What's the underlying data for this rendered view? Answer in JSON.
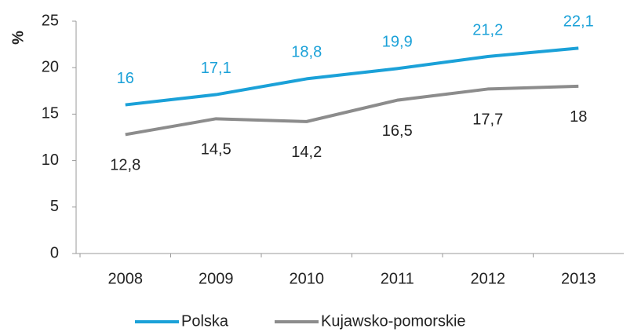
{
  "chart_data": {
    "type": "line",
    "y_label": "%",
    "categories": [
      "2008",
      "2009",
      "2010",
      "2011",
      "2012",
      "2013"
    ],
    "series": [
      {
        "name": "Polska",
        "color": "#1ba1d8",
        "values": [
          16,
          17.1,
          18.8,
          19.9,
          21.2,
          22.1
        ],
        "value_labels": [
          "16",
          "17,1",
          "18,8",
          "19,9",
          "21,2",
          "22,1"
        ]
      },
      {
        "name": "Kujawsko-pomorskie",
        "color": "#8c8c8c",
        "values": [
          12.8,
          14.5,
          14.2,
          16.5,
          17.7,
          18
        ],
        "value_labels": [
          "12,8",
          "14,5",
          "14,2",
          "16,5",
          "17,7",
          "18"
        ]
      }
    ],
    "ylim": [
      0,
      25
    ],
    "yticks": [
      0,
      5,
      10,
      15,
      20,
      25
    ],
    "grid": false,
    "legend": "bottom"
  }
}
